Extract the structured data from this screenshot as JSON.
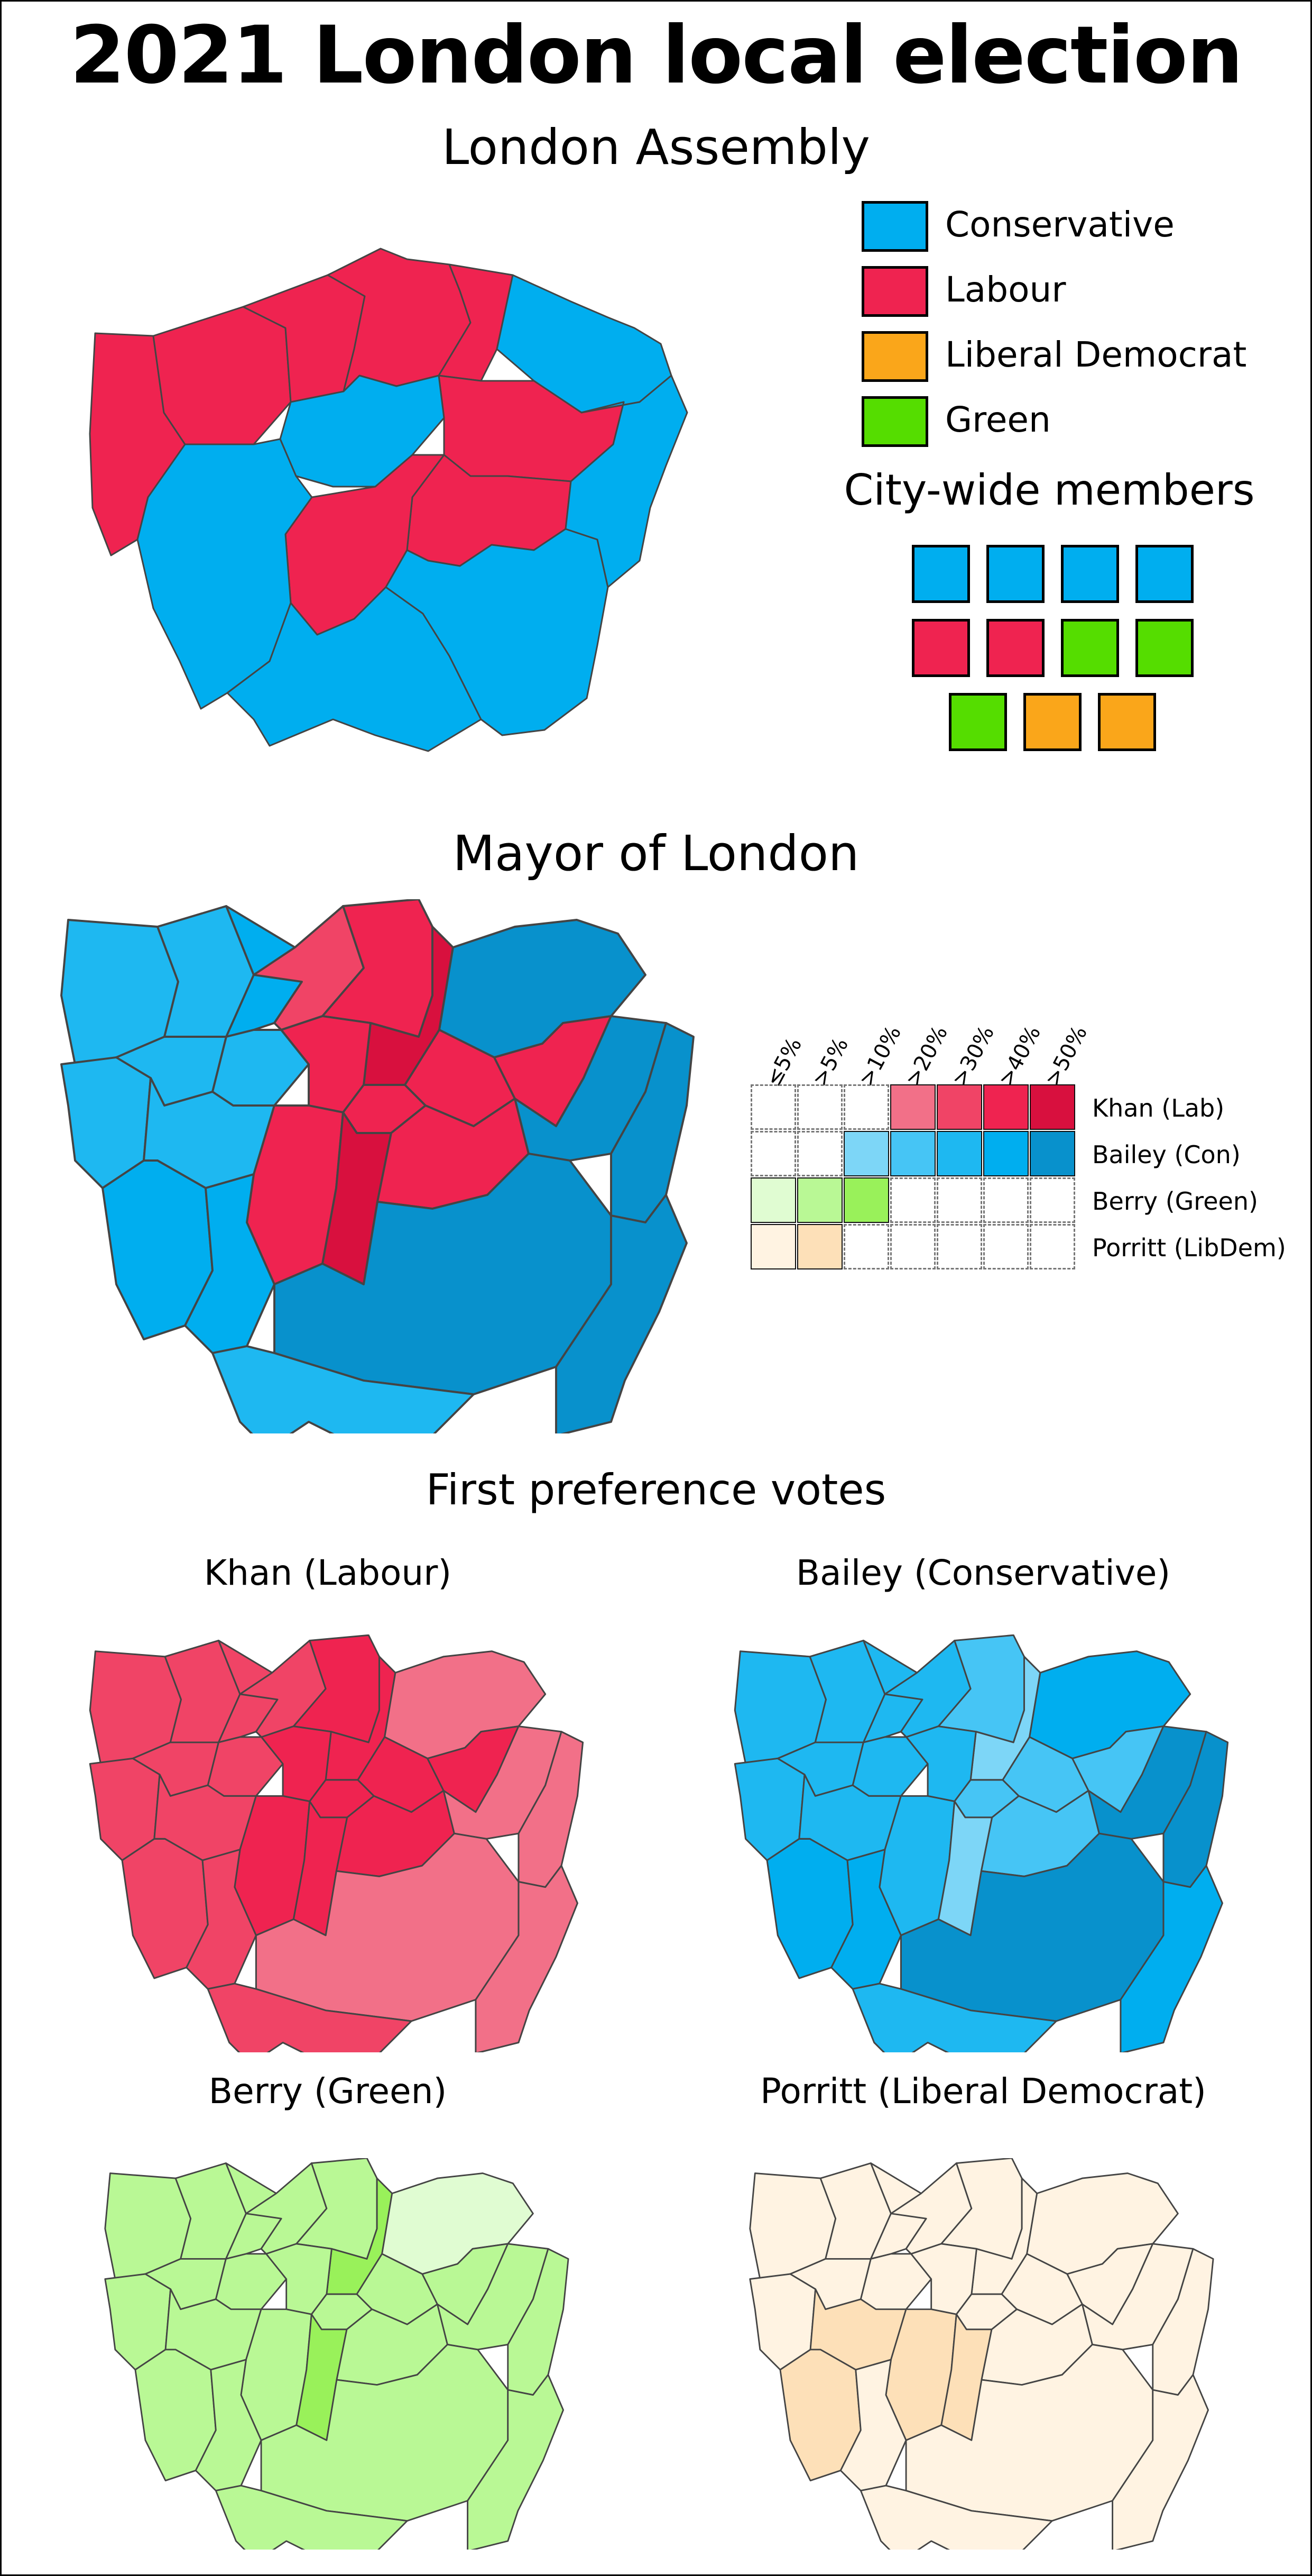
{
  "title": "2021 London local election",
  "assembly": {
    "heading": "London Assembly",
    "legend": [
      {
        "label": "Conservative",
        "color": "#00aeef"
      },
      {
        "label": "Labour",
        "color": "#ef2350"
      },
      {
        "label": "Liberal Democrat",
        "color": "#faa61a"
      },
      {
        "label": "Green",
        "color": "#55dd00"
      }
    ],
    "citywide_heading": "City-wide members",
    "citywide_seats": [
      [
        "Conservative",
        "Conservative",
        "Conservative",
        "Conservative"
      ],
      [
        "Labour",
        "Labour",
        "Green",
        "Green"
      ],
      [
        "Green",
        "Liberal Democrat",
        "Liberal Democrat"
      ]
    ],
    "constituency_winners": [
      "Labour",
      "Labour",
      "Labour",
      "Labour",
      "Labour",
      "Conservative",
      "Labour",
      "Conservative",
      "Labour",
      "Labour",
      "Conservative",
      "Conservative",
      "Conservative",
      "Conservative"
    ]
  },
  "mayor": {
    "heading": "Mayor of London",
    "ticks": [
      "≤5%",
      ">5%",
      ">10%",
      ">20%",
      ">30%",
      ">40%",
      ">50%"
    ],
    "candidates": [
      {
        "label": "Khan (Lab)",
        "shades": [
          null,
          null,
          null,
          "#f27088",
          "#f04466",
          "#ef2350",
          "#d8103e"
        ]
      },
      {
        "label": "Bailey (Con)",
        "shades": [
          null,
          null,
          "#7dd6f7",
          "#46c5f5",
          "#1eb8f1",
          "#00aeef",
          "#0891cc"
        ]
      },
      {
        "label": "Berry (Green)",
        "shades": [
          "#e0fcd2",
          "#b9f895",
          "#99f15a",
          null,
          null,
          null,
          null
        ]
      },
      {
        "label": "Porritt (LibDem)",
        "shades": [
          "#fff3e2",
          "#fde0b8",
          null,
          null,
          null,
          null,
          null
        ]
      }
    ],
    "borough_colors": [
      "#1eb8f1",
      "#1eb8f1",
      "#00aeef",
      "#f04466",
      "#ef2350",
      "#d8103e",
      "#0891cc",
      "#1eb8f1",
      "#1eb8f1",
      "#1eb8f1",
      "#ef2350",
      "#ef2350",
      "#ef2350",
      "#ef2350",
      "#1eb8f1",
      "#ef2350",
      "#d8103e",
      "#ef2350",
      "#0891cc",
      "#0891cc",
      "#00aeef",
      "#00aeef",
      "#0891cc",
      "#0891cc",
      "#1eb8f1"
    ]
  },
  "first_pref": {
    "heading": "First preference votes",
    "panels": [
      {
        "title": "Khan (Labour)",
        "colors": [
          "#f04466",
          "#f04466",
          "#f04466",
          "#f04466",
          "#ef2350",
          "#ef2350",
          "#f27088",
          "#f04466",
          "#f04466",
          "#f04466",
          "#ef2350",
          "#ef2350",
          "#ef2350",
          "#ef2350",
          "#f04466",
          "#ef2350",
          "#ef2350",
          "#ef2350",
          "#f27088",
          "#f27088",
          "#f04466",
          "#f04466",
          "#f27088",
          "#f27088",
          "#f04466"
        ]
      },
      {
        "title": "Bailey (Conservative)",
        "colors": [
          "#1eb8f1",
          "#1eb8f1",
          "#1eb8f1",
          "#1eb8f1",
          "#46c5f5",
          "#7dd6f7",
          "#00aeef",
          "#1eb8f1",
          "#1eb8f1",
          "#1eb8f1",
          "#1eb8f1",
          "#46c5f5",
          "#46c5f5",
          "#46c5f5",
          "#1eb8f1",
          "#1eb8f1",
          "#7dd6f7",
          "#46c5f5",
          "#0891cc",
          "#0891cc",
          "#00aeef",
          "#00aeef",
          "#0891cc",
          "#00aeef",
          "#1eb8f1"
        ]
      },
      {
        "title": "Berry (Green)",
        "colors": [
          "#b9f895",
          "#b9f895",
          "#b9f895",
          "#b9f895",
          "#b9f895",
          "#99f15a",
          "#e0fcd2",
          "#b9f895",
          "#b9f895",
          "#b9f895",
          "#b9f895",
          "#b9f895",
          "#b9f895",
          "#b9f895",
          "#b9f895",
          "#b9f895",
          "#99f15a",
          "#b9f895",
          "#b9f895",
          "#b9f895",
          "#b9f895",
          "#b9f895",
          "#b9f895",
          "#b9f895",
          "#b9f895"
        ]
      },
      {
        "title": "Porritt (Liberal Democrat)",
        "colors": [
          "#fff3e2",
          "#fff3e2",
          "#fff3e2",
          "#fff3e2",
          "#fff3e2",
          "#fff3e2",
          "#fff3e2",
          "#fff3e2",
          "#fff3e2",
          "#fff3e2",
          "#fff3e2",
          "#fff3e2",
          "#fff3e2",
          "#fff3e2",
          "#fde0b8",
          "#fde0b8",
          "#fde0b8",
          "#fff3e2",
          "#fff3e2",
          "#fff3e2",
          "#fde0b8",
          "#fff3e2",
          "#fff3e2",
          "#fff3e2",
          "#fff3e2"
        ]
      }
    ]
  }
}
